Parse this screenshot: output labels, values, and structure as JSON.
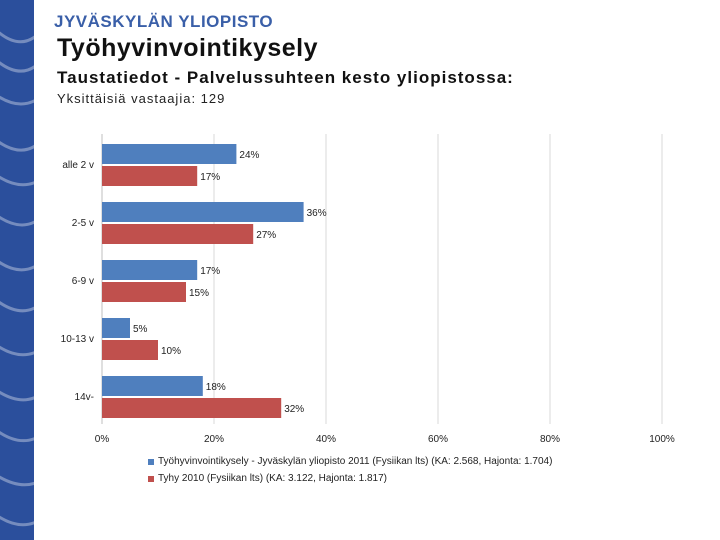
{
  "header": {
    "logo_text": "JYVÄSKYLÄN YLIOPISTO",
    "title": "Työhyvinvointikysely",
    "subtitle": "Taustatiedot - Palvelussuhteen kesto yliopistossa:",
    "respondents": "Yksittäisiä vastaajia: 129"
  },
  "chart_data": {
    "type": "bar",
    "orientation": "horizontal",
    "categories": [
      "alle 2 v",
      "2-5 v",
      "6-9 v",
      "10-13 v",
      "14v-"
    ],
    "series": [
      {
        "name": "Työhyvinvointikysely - Jyväskylän yliopisto 2011 (Fysiikan lts) (KA: 2.568, Hajonta: 1.704)",
        "values": [
          24,
          36,
          17,
          5,
          18
        ],
        "labels": [
          "24%",
          "36%",
          "17%",
          "5%",
          "18%"
        ],
        "color": "#4f7fbe"
      },
      {
        "name": "Tyhy 2010 (Fysiikan lts) (KA: 3.122, Hajonta: 1.817)",
        "values": [
          17,
          27,
          15,
          10,
          32
        ],
        "labels": [
          "17%",
          "27%",
          "15%",
          "10%",
          "32%"
        ],
        "color": "#c0504d"
      }
    ],
    "xlim": [
      0,
      100
    ],
    "ticks": [
      0,
      20,
      40,
      60,
      80,
      100
    ],
    "tick_labels": [
      "0%",
      "20%",
      "40%",
      "60%",
      "80%",
      "100%"
    ],
    "grid": true,
    "legend_position": "bottom"
  },
  "theme": {
    "sidebar_color": "#2b4f9c",
    "grid_color": "#d9d9d9"
  }
}
